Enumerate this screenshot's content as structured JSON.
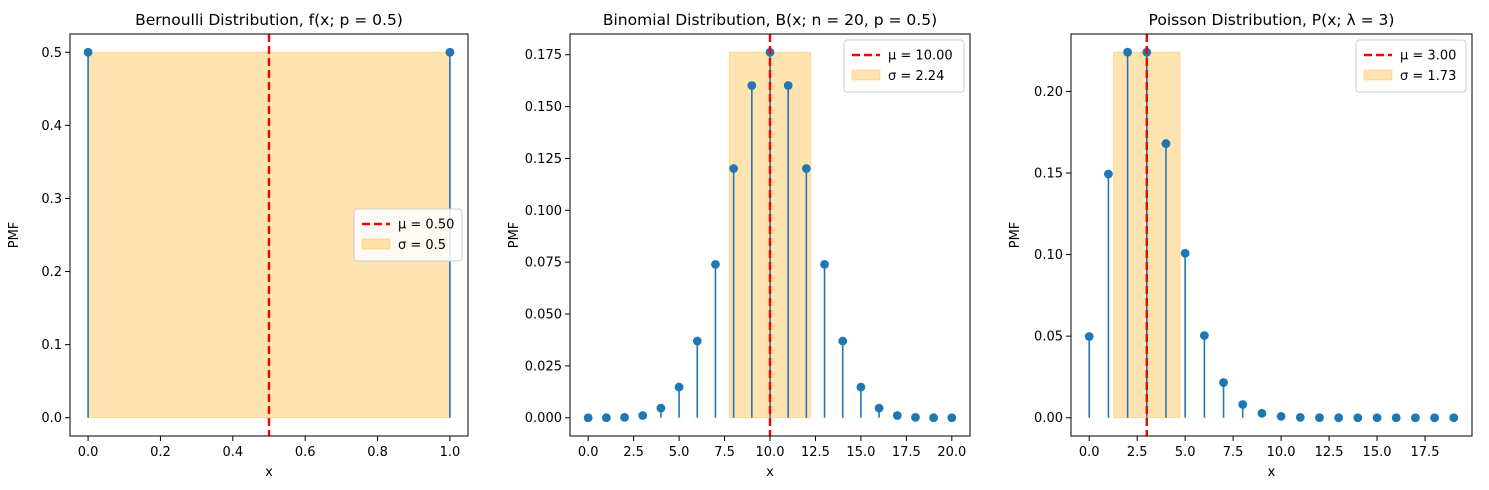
{
  "colors": {
    "stem": "#1f77b4",
    "mean_line": "#ff0000",
    "sigma_band": "#ffa500",
    "axes": "#000000"
  },
  "chart_data": [
    {
      "type": "stem",
      "title": "Bernoulli Distribution, f(x; p = 0.5)",
      "title_parts": [
        "Bernoulli Distribution, ",
        "f(x; p = 0.5)"
      ],
      "xlabel": "x",
      "ylabel": "PMF",
      "xlim": [
        -0.05,
        1.05
      ],
      "ylim": [
        -0.025,
        0.525
      ],
      "xticks": [
        0.0,
        0.2,
        0.4,
        0.6,
        0.8,
        1.0
      ],
      "xtick_labels": [
        "0.0",
        "0.2",
        "0.4",
        "0.6",
        "0.8",
        "1.0"
      ],
      "yticks": [
        0.0,
        0.1,
        0.2,
        0.3,
        0.4,
        0.5
      ],
      "ytick_labels": [
        "0.0",
        "0.1",
        "0.2",
        "0.3",
        "0.4",
        "0.5"
      ],
      "x": [
        0,
        1
      ],
      "y": [
        0.5,
        0.5
      ],
      "mean": 0.5,
      "sigma": 0.5,
      "band": [
        0.0,
        1.0
      ],
      "band_top": 0.5,
      "legend": {
        "placement": "center-right",
        "mean_label": "μ = 0.50",
        "sigma_label": "σ = 0.5"
      }
    },
    {
      "type": "stem",
      "title": "Binomial Distribution, B(x; n = 20, p = 0.5)",
      "title_parts": [
        "Binomial Distribution, ",
        "B(x; n = 20, p = 0.5)"
      ],
      "xlabel": "x",
      "ylabel": "PMF",
      "xlim": [
        -1.0,
        21.0
      ],
      "ylim": [
        -0.0088,
        0.185
      ],
      "xticks": [
        0.0,
        2.5,
        5.0,
        7.5,
        10.0,
        12.5,
        15.0,
        17.5,
        20.0
      ],
      "xtick_labels": [
        "0.0",
        "2.5",
        "5.0",
        "7.5",
        "10.0",
        "12.5",
        "15.0",
        "17.5",
        "20.0"
      ],
      "yticks": [
        0.0,
        0.025,
        0.05,
        0.075,
        0.1,
        0.125,
        0.15,
        0.175
      ],
      "ytick_labels": [
        "0.000",
        "0.025",
        "0.050",
        "0.075",
        "0.100",
        "0.125",
        "0.150",
        "0.175"
      ],
      "x": [
        0,
        1,
        2,
        3,
        4,
        5,
        6,
        7,
        8,
        9,
        10,
        11,
        12,
        13,
        14,
        15,
        16,
        17,
        18,
        19,
        20
      ],
      "y": [
        1e-06,
        1.9e-05,
        0.000181,
        0.001087,
        0.004621,
        0.014786,
        0.036964,
        0.073929,
        0.120134,
        0.160179,
        0.176197,
        0.160179,
        0.120134,
        0.073929,
        0.036964,
        0.014786,
        0.004621,
        0.001087,
        0.000181,
        1.9e-05,
        1e-06
      ],
      "mean": 10.0,
      "sigma": 2.24,
      "band": [
        7.76,
        12.24
      ],
      "band_top": 0.176197,
      "legend": {
        "placement": "top-right",
        "mean_label": "μ = 10.00",
        "sigma_label": "σ = 2.24"
      }
    },
    {
      "type": "stem",
      "title": "Poisson Distribution, P(x; λ = 3)",
      "title_parts": [
        "Poisson Distribution, P(x; ",
        "λ = 3)"
      ],
      "xlabel": "x",
      "ylabel": "PMF",
      "xlim": [
        -0.95,
        19.95
      ],
      "ylim": [
        -0.0112,
        0.2352
      ],
      "xticks": [
        0.0,
        2.5,
        5.0,
        7.5,
        10.0,
        12.5,
        15.0,
        17.5
      ],
      "xtick_labels": [
        "0.0",
        "2.5",
        "5.0",
        "7.5",
        "10.0",
        "12.5",
        "15.0",
        "17.5"
      ],
      "yticks": [
        0.0,
        0.05,
        0.1,
        0.15,
        0.2
      ],
      "ytick_labels": [
        "0.00",
        "0.05",
        "0.10",
        "0.15",
        "0.20"
      ],
      "x": [
        0,
        1,
        2,
        3,
        4,
        5,
        6,
        7,
        8,
        9,
        10,
        11,
        12,
        13,
        14,
        15,
        16,
        17,
        18,
        19
      ],
      "y": [
        0.049787,
        0.149361,
        0.224042,
        0.224042,
        0.168031,
        0.100819,
        0.050409,
        0.021604,
        0.008102,
        0.002701,
        0.00081,
        0.000221,
        5.5e-05,
        1.3e-05,
        3e-06,
        1e-06,
        0.0,
        0.0,
        0.0,
        0.0
      ],
      "mean": 3.0,
      "sigma": 1.73,
      "band": [
        1.27,
        4.73
      ],
      "band_top": 0.224042,
      "legend": {
        "placement": "top-right",
        "mean_label": "μ = 3.00",
        "sigma_label": "σ = 1.73"
      }
    }
  ]
}
